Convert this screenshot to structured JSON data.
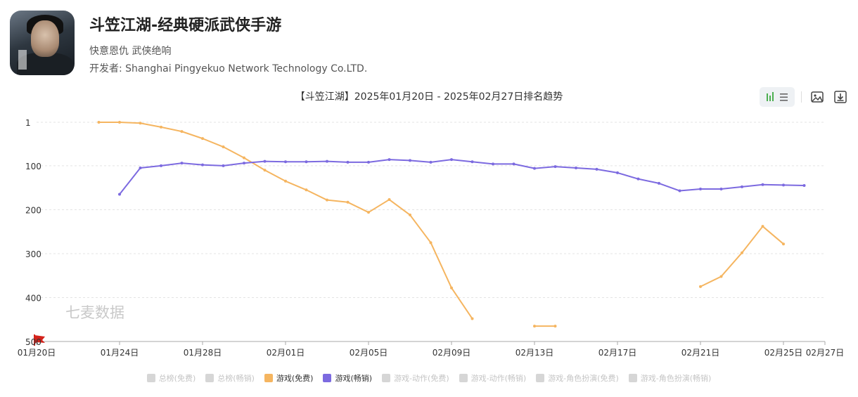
{
  "header": {
    "title": "斗笠江湖-经典硬派武侠手游",
    "tagline": "快意恩仇 武侠绝响",
    "developer": "开发者: Shanghai Pingyekuo Network Technology Co.LTD."
  },
  "toolbar": {
    "icons": [
      "bar-chart-icon",
      "list-icon",
      "image-icon",
      "download-icon"
    ]
  },
  "watermark": "七麦数据",
  "chart_data": {
    "type": "line",
    "title": "【斗笠江湖】2025年01月20日 - 2025年02月27日排名趋势",
    "y_inverted": true,
    "ylim": [
      1,
      500
    ],
    "yticks": [
      "1",
      "100",
      "200",
      "300",
      "400",
      "500"
    ],
    "x_dates": [
      "01-20",
      "01-21",
      "01-22",
      "01-23",
      "01-24",
      "01-25",
      "01-26",
      "01-27",
      "01-28",
      "01-29",
      "01-30",
      "01-31",
      "02-01",
      "02-02",
      "02-03",
      "02-04",
      "02-05",
      "02-06",
      "02-07",
      "02-08",
      "02-09",
      "02-10",
      "02-11",
      "02-12",
      "02-13",
      "02-14",
      "02-15",
      "02-16",
      "02-17",
      "02-18",
      "02-19",
      "02-20",
      "02-21",
      "02-22",
      "02-23",
      "02-24",
      "02-25",
      "02-26",
      "02-27"
    ],
    "x_tick_labels": [
      {
        "date": "01-20",
        "label": "01月20日"
      },
      {
        "date": "01-24",
        "label": "01月24日"
      },
      {
        "date": "01-28",
        "label": "01月28日"
      },
      {
        "date": "02-01",
        "label": "02月01日"
      },
      {
        "date": "02-05",
        "label": "02月05日"
      },
      {
        "date": "02-09",
        "label": "02月09日"
      },
      {
        "date": "02-13",
        "label": "02月13日"
      },
      {
        "date": "02-17",
        "label": "02月17日"
      },
      {
        "date": "02-21",
        "label": "02月21日"
      },
      {
        "date": "02-25",
        "label": "02月25日"
      },
      {
        "date": "02-27",
        "label": "02月27日"
      }
    ],
    "grid": true,
    "legend_position": "bottom",
    "series": [
      {
        "name": "游戏(免费)",
        "color": "#f5b560",
        "values": [
          null,
          null,
          null,
          1,
          1,
          3,
          12,
          22,
          38,
          57,
          82,
          110,
          135,
          155,
          178,
          183,
          206,
          177,
          212,
          275,
          378,
          448,
          null,
          null,
          465,
          465,
          null,
          null,
          null,
          null,
          null,
          null,
          375,
          352,
          298,
          238,
          278,
          null,
          null
        ]
      },
      {
        "name": "游戏(畅销)",
        "color": "#7c6ae0",
        "values": [
          null,
          null,
          null,
          null,
          165,
          105,
          100,
          94,
          98,
          100,
          94,
          90,
          91,
          91,
          90,
          92,
          92,
          86,
          88,
          92,
          86,
          91,
          96,
          96,
          106,
          102,
          105,
          108,
          116,
          130,
          140,
          157,
          153,
          153,
          148,
          143,
          144,
          145,
          null
        ]
      }
    ],
    "legend": [
      {
        "label": "总榜(免费)",
        "color": "#d6d6d6",
        "active": false
      },
      {
        "label": "总榜(畅销)",
        "color": "#d6d6d6",
        "active": false
      },
      {
        "label": "游戏(免费)",
        "color": "#f5b560",
        "active": true
      },
      {
        "label": "游戏(畅销)",
        "color": "#7c6ae0",
        "active": true
      },
      {
        "label": "游戏-动作(免费)",
        "color": "#d6d6d6",
        "active": false
      },
      {
        "label": "游戏-动作(畅销)",
        "color": "#d6d6d6",
        "active": false
      },
      {
        "label": "游戏-角色扮演(免费)",
        "color": "#d6d6d6",
        "active": false
      },
      {
        "label": "游戏-角色扮演(畅销)",
        "color": "#d6d6d6",
        "active": false
      }
    ]
  }
}
